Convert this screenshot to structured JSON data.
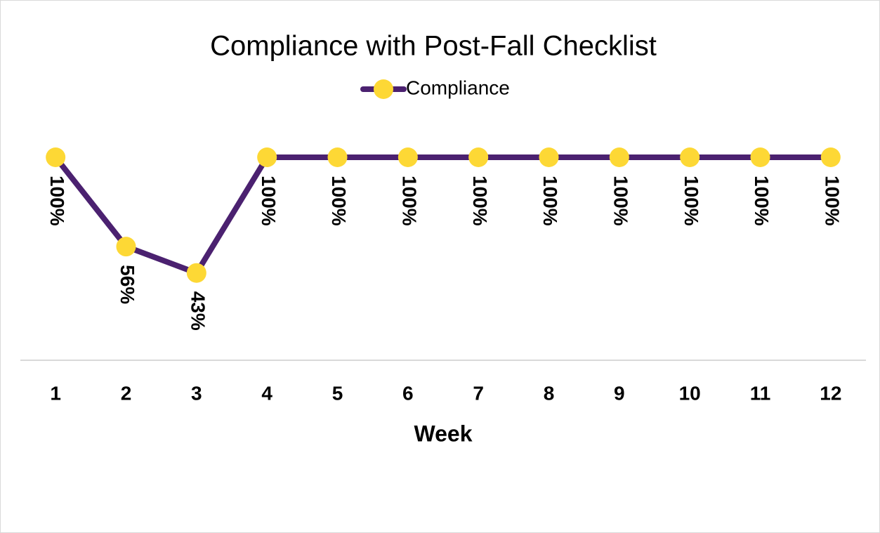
{
  "chart_data": {
    "type": "line",
    "title": "Compliance with Post-Fall Checklist",
    "x_label": "Week",
    "categories": [
      "1",
      "2",
      "3",
      "4",
      "5",
      "6",
      "7",
      "8",
      "9",
      "10",
      "11",
      "12"
    ],
    "series": [
      {
        "name": "Compliance",
        "color": "#4b2170",
        "marker_color": "#fdd835",
        "values": [
          100,
          56,
          43,
          100,
          100,
          100,
          100,
          100,
          100,
          100,
          100,
          100
        ],
        "value_labels": [
          "100%",
          "56%",
          "43%",
          "100%",
          "100%",
          "100%",
          "100%",
          "100%",
          "100%",
          "100%",
          "100%",
          "100%"
        ]
      }
    ],
    "ylim": [
      0,
      100
    ],
    "grid": false,
    "legend": "top"
  }
}
